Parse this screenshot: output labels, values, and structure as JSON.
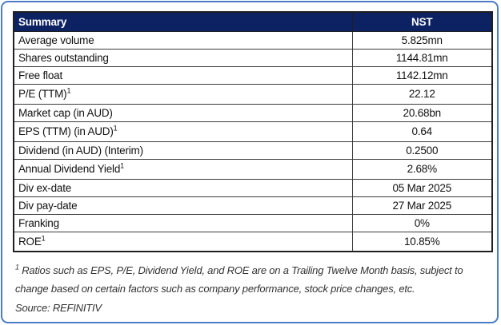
{
  "frame": {
    "border_color": "#4a7cc7"
  },
  "table": {
    "header": {
      "col1": "Summary",
      "col2": "NST",
      "bg_color": "#0d2263",
      "text_color": "#ffffff"
    },
    "rows": [
      {
        "label": "Average volume",
        "sup": "",
        "value": "5.825mn"
      },
      {
        "label": "Shares outstanding",
        "sup": "",
        "value": "1144.81mn"
      },
      {
        "label": "Free float",
        "sup": "",
        "value": "1142.12mn"
      },
      {
        "label": "P/E (TTM)",
        "sup": "1",
        "value": "22.12"
      },
      {
        "label": "Market cap (in AUD)",
        "sup": "",
        "value": "20.68bn"
      },
      {
        "label": "EPS (TTM) (in AUD)",
        "sup": "1",
        "value": "0.64"
      },
      {
        "label": "Dividend (in AUD) (Interim)",
        "sup": "",
        "value": "0.2500"
      },
      {
        "label": "Annual Dividend Yield",
        "sup": "1",
        "value": "2.68%"
      },
      {
        "label": "Div ex-date",
        "sup": "",
        "value": "05 Mar 2025"
      },
      {
        "label": "Div pay-date",
        "sup": "",
        "value": "27 Mar 2025"
      },
      {
        "label": "Franking",
        "sup": "",
        "value": "0%"
      },
      {
        "label": "ROE",
        "sup": "1",
        "value": "10.85%"
      }
    ]
  },
  "footnote": {
    "sup": "1",
    "text": " Ratios such as EPS, P/E, Dividend Yield, and ROE are on a Trailing Twelve Month basis, subject to change based on certain factors such as company performance, stock price changes, etc."
  },
  "source": {
    "text": "Source: REFINITIV"
  }
}
